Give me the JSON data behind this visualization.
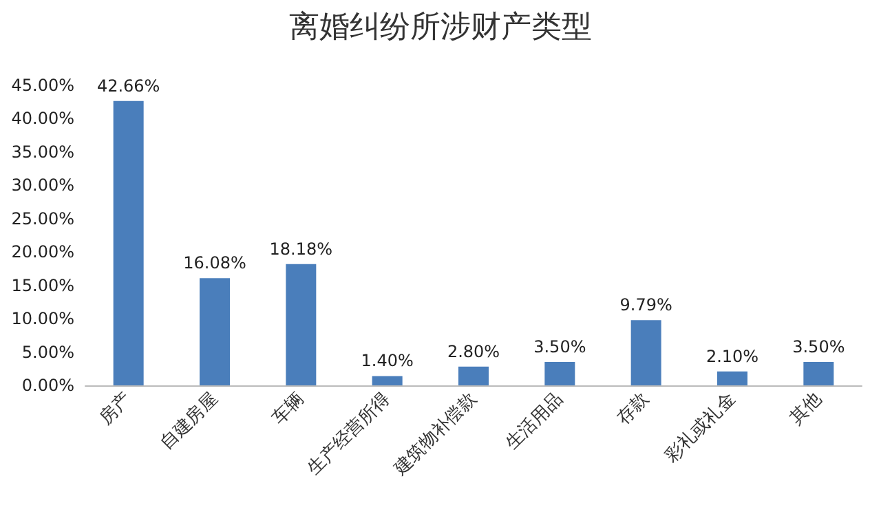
{
  "chart_data": {
    "type": "bar",
    "title": "离婚纠纷所涉财产类型",
    "categories": [
      "房产",
      "自建房屋",
      "车辆",
      "生产经营所得",
      "建筑物补偿款",
      "生活用品",
      "存款",
      "彩礼或礼金",
      "其他"
    ],
    "values": [
      42.66,
      16.08,
      18.18,
      1.4,
      2.8,
      3.5,
      9.79,
      2.1,
      3.5
    ],
    "value_labels": [
      "42.66%",
      "16.08%",
      "18.18%",
      "1.40%",
      "2.80%",
      "3.50%",
      "9.79%",
      "2.10%",
      "3.50%"
    ],
    "color": "#4a7ebb",
    "ylim": [
      0,
      45
    ],
    "yticks": [
      {
        "value": 0,
        "label": "0.00%"
      },
      {
        "value": 5,
        "label": "5.00%"
      },
      {
        "value": 10,
        "label": "10.00%"
      },
      {
        "value": 15,
        "label": "15.00%"
      },
      {
        "value": 20,
        "label": "20.00%"
      },
      {
        "value": 25,
        "label": "25.00%"
      },
      {
        "value": 30,
        "label": "30.00%"
      },
      {
        "value": 35,
        "label": "35.00%"
      },
      {
        "value": 40,
        "label": "40.00%"
      },
      {
        "value": 45,
        "label": "45.00%"
      }
    ],
    "grid": false
  }
}
